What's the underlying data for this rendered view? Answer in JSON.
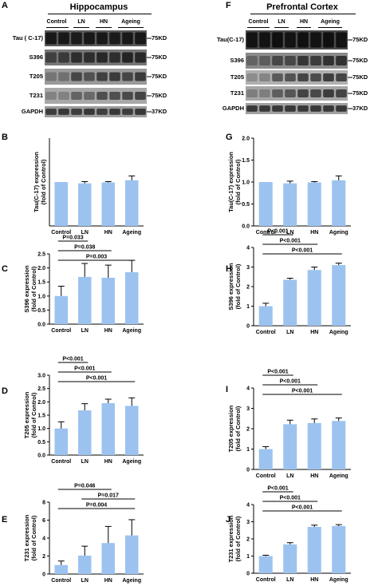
{
  "blots": [
    {
      "letter": "A",
      "title": "Hippocampus",
      "lanes": [
        "Control",
        "LN",
        "HN",
        "Ageing"
      ],
      "rows": [
        {
          "label": "Tau ( C-17)",
          "kd": "75KD"
        },
        {
          "label": "S396",
          "kd": "75KD"
        },
        {
          "label": "T205",
          "kd": "75KD"
        },
        {
          "label": "T231",
          "kd": "75KD"
        },
        {
          "label": "GAPDH",
          "kd": "37KD"
        }
      ]
    },
    {
      "letter": "F",
      "title": "Prefrontal  Cortex",
      "lanes": [
        "Control",
        "LN",
        "HN",
        "Ageing"
      ],
      "rows": [
        {
          "label": "Tau(C-17)",
          "kd": "75KD"
        },
        {
          "label": "S396",
          "kd": "75KD"
        },
        {
          "label": "T205",
          "kd": "75KD"
        },
        {
          "label": "T231",
          "kd": "75KD"
        },
        {
          "label": "GAPDH",
          "kd": "37KD"
        }
      ]
    }
  ],
  "colors": {
    "bar": "#9cc3f0",
    "band": "#2a2a2a",
    "blot_bg": "#8a8a8a"
  },
  "chart_data": [
    {
      "letter": "B",
      "type": "bar",
      "categories": [
        "Control",
        "LN",
        "HN",
        "Ageing"
      ],
      "values": [
        1.0,
        0.97,
        0.99,
        1.04
      ],
      "errors": [
        0,
        0.04,
        0.02,
        0.1
      ],
      "ylabel": "Tau(C-17) expression\n(fold of Control)",
      "ylim": [
        0,
        2.0
      ],
      "ticks": [],
      "comparisons": []
    },
    {
      "letter": "G",
      "type": "bar",
      "categories": [
        "Control",
        "LN",
        "HN",
        "Ageing"
      ],
      "values": [
        1.0,
        0.97,
        0.99,
        1.04
      ],
      "errors": [
        0,
        0.05,
        0.02,
        0.1
      ],
      "ylabel": "Tau(C-17) expression\n(fold of Control)",
      "ylim": [
        0,
        2.0
      ],
      "ticks": [
        "0.0",
        "0.5",
        "1.0",
        "1.5",
        "2.0"
      ],
      "comparisons": []
    },
    {
      "letter": "C",
      "type": "bar",
      "categories": [
        "Control",
        "LN",
        "HN",
        "Ageing"
      ],
      "values": [
        1.0,
        1.68,
        1.65,
        1.85
      ],
      "errors": [
        0.35,
        0.48,
        0.45,
        0.42
      ],
      "ylabel": "S396 expression\n(fold of Control)",
      "ylim": [
        0,
        2.5
      ],
      "ticks": [
        "0.0",
        "0.5",
        "1.0",
        "1.5",
        "2.0",
        "2.5"
      ],
      "comparisons": [
        {
          "label": "P=0.033",
          "to": 1
        },
        {
          "label": "P=0.038",
          "to": 2
        },
        {
          "label": "P=0.003",
          "to": 3
        }
      ]
    },
    {
      "letter": "H",
      "type": "bar",
      "categories": [
        "Control",
        "LN",
        "HN",
        "Ageing"
      ],
      "values": [
        1.0,
        2.35,
        2.85,
        3.1
      ],
      "errors": [
        0.15,
        0.08,
        0.15,
        0.1
      ],
      "ylabel": "S396 expression\n(fold of Control)",
      "ylim": [
        0,
        4
      ],
      "ticks": [
        "0",
        "1",
        "2",
        "3",
        "4"
      ],
      "comparisons": [
        {
          "label": "P<0.001",
          "to": 1
        },
        {
          "label": "P<0.001",
          "to": 2
        },
        {
          "label": "P<0.001",
          "to": 3
        }
      ]
    },
    {
      "letter": "D",
      "type": "bar",
      "categories": [
        "Control",
        "LN",
        "HN",
        "Ageing"
      ],
      "values": [
        1.0,
        1.68,
        1.95,
        1.85
      ],
      "errors": [
        0.25,
        0.25,
        0.15,
        0.3
      ],
      "ylabel": "T205 expression\n(fold of Control)",
      "ylim": [
        0,
        3.0
      ],
      "ticks": [
        "0.0",
        "0.5",
        "1.0",
        "1.5",
        "2.0",
        "2.5",
        "3.0"
      ],
      "comparisons": [
        {
          "label": "P<0.001",
          "to": 1
        },
        {
          "label": "P<0.001",
          "to": 2
        },
        {
          "label": "P<0.001",
          "to": 3
        }
      ]
    },
    {
      "letter": "I",
      "type": "bar",
      "categories": [
        "Control",
        "LN",
        "HN",
        "Ageing"
      ],
      "values": [
        1.0,
        2.22,
        2.28,
        2.38
      ],
      "errors": [
        0.12,
        0.2,
        0.2,
        0.15
      ],
      "ylabel": "T205 expression\n(fold of Control)",
      "ylim": [
        0,
        4
      ],
      "ticks": [
        "0",
        "1",
        "2",
        "3",
        "4"
      ],
      "comparisons": [
        {
          "label": "P<0.001",
          "to": 1
        },
        {
          "label": "P<0.001",
          "to": 2
        },
        {
          "label": "P<0.001",
          "to": 3
        }
      ]
    },
    {
      "letter": "E",
      "type": "bar",
      "categories": [
        "Control",
        "LN",
        "HN",
        "Ageing"
      ],
      "values": [
        1.0,
        2.05,
        3.45,
        4.3
      ],
      "errors": [
        0.45,
        1.05,
        1.85,
        1.75
      ],
      "ylabel": "T231 expression\n(fold of Control)",
      "ylim": [
        0,
        8
      ],
      "ticks": [
        "0",
        "2",
        "4",
        "6",
        "8"
      ],
      "comparisons": [
        {
          "label": "P=0.046",
          "to": 2
        },
        {
          "label": "P=0.017",
          "to": 3,
          "from": 1
        },
        {
          "label": "P=0.004",
          "to": 3
        }
      ]
    },
    {
      "letter": "J",
      "type": "bar",
      "categories": [
        "Control",
        "LN",
        "HN",
        "Ageing"
      ],
      "values": [
        1.0,
        1.68,
        2.7,
        2.75
      ],
      "errors": [
        0.05,
        0.1,
        0.1,
        0.08
      ],
      "ylabel": "T231 expression\n(fold of Control)",
      "ylim": [
        0,
        4
      ],
      "ticks": [
        "0",
        "1",
        "2",
        "3",
        "4"
      ],
      "comparisons": [
        {
          "label": "P<0.001",
          "to": 1
        },
        {
          "label": "P<0.001",
          "to": 2
        },
        {
          "label": "P<0.001",
          "to": 3
        }
      ]
    }
  ]
}
